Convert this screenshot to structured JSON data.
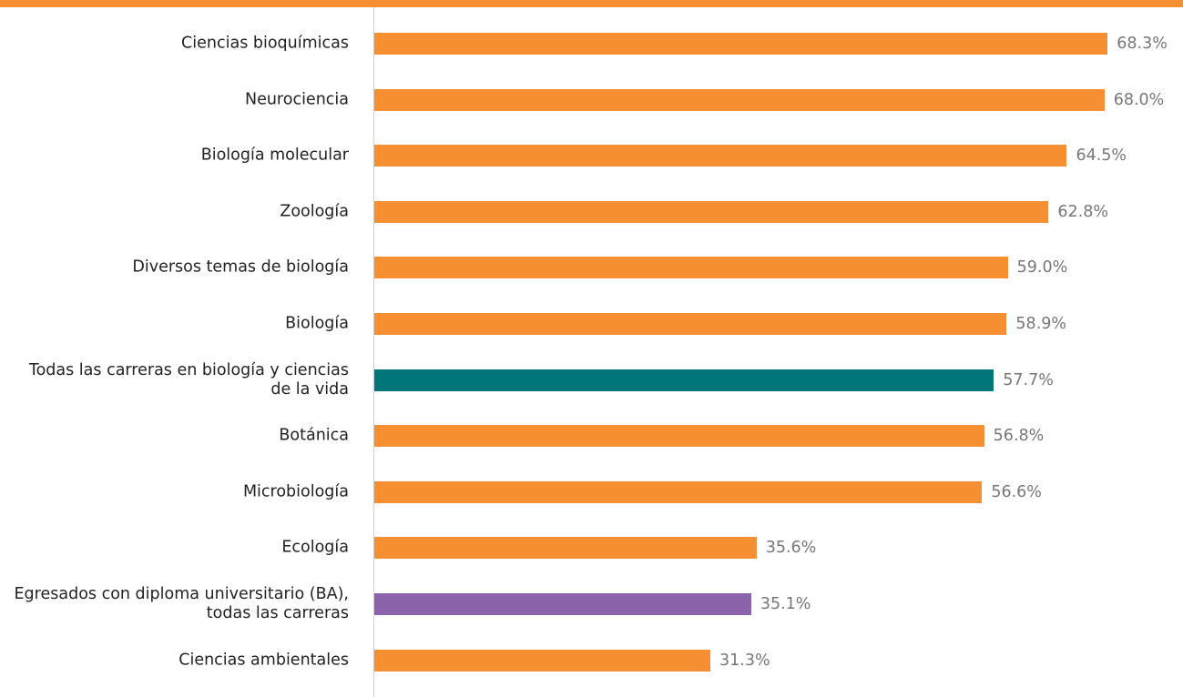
{
  "chart_data": {
    "type": "bar",
    "orientation": "horizontal",
    "categories": [
      "Ciencias bioquímicas",
      "Neurociencia",
      "Biología molecular",
      "Zoología",
      "Diversos temas de biología",
      "Biología",
      "Todas las carreras en biología y ciencias de la vida",
      "Botánica",
      "Microbiología",
      "Ecología",
      "Egresados con diploma universitario (BA), todas las carreras",
      "Ciencias ambientales"
    ],
    "values": [
      68.3,
      68.0,
      64.5,
      62.8,
      59.0,
      58.9,
      57.7,
      56.8,
      56.6,
      35.6,
      35.1,
      31.3
    ],
    "value_labels": [
      "68.3%",
      "68.0%",
      "64.5%",
      "62.8%",
      "59.0%",
      "58.9%",
      "57.7%",
      "56.8%",
      "56.6%",
      "35.6%",
      "35.1%",
      "31.3%"
    ],
    "colors": [
      "#f58f31",
      "#f58f31",
      "#f58f31",
      "#f58f31",
      "#f58f31",
      "#f58f31",
      "#00767a",
      "#f58f31",
      "#f58f31",
      "#f58f31",
      "#8b63ab",
      "#f58f31"
    ],
    "xlim": [
      0,
      100
    ]
  }
}
